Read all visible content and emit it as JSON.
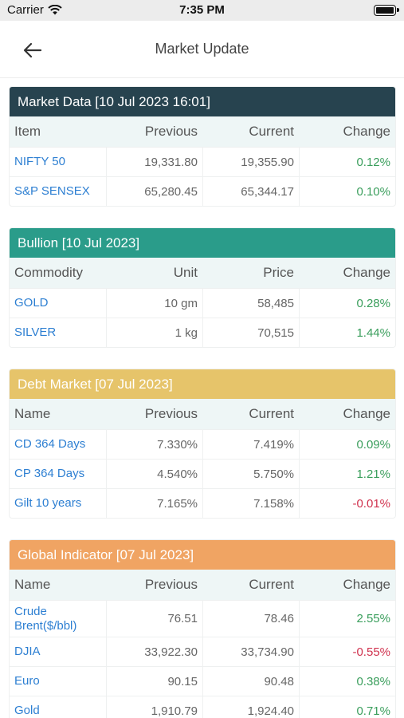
{
  "status_bar": {
    "carrier": "Carrier",
    "time": "7:35 PM"
  },
  "nav": {
    "title": "Market Update"
  },
  "colors": {
    "market_data": "#27434f",
    "bullion": "#2a9c8a",
    "debt_market": "#e6c46a",
    "global_indicator": "#f0a463",
    "positive": "#3a9e5c",
    "negative": "#d0314d",
    "link": "#2d7fd2"
  },
  "market_data": {
    "title": "Market Data [10 Jul 2023 16:01]",
    "headers": [
      "Item",
      "Previous",
      "Current",
      "Change"
    ],
    "rows": [
      {
        "item": "NIFTY 50",
        "previous": "19,331.80",
        "current": "19,355.90",
        "change": "0.12%"
      },
      {
        "item": "S&P SENSEX",
        "previous": "65,280.45",
        "current": "65,344.17",
        "change": "0.10%"
      }
    ]
  },
  "bullion": {
    "title": "Bullion [10 Jul 2023]",
    "headers": [
      "Commodity",
      "Unit",
      "Price",
      "Change"
    ],
    "rows": [
      {
        "item": "GOLD",
        "unit": "10 gm",
        "price": "58,485",
        "change": "0.28%"
      },
      {
        "item": "SILVER",
        "unit": "1 kg",
        "price": "70,515",
        "change": "1.44%"
      }
    ]
  },
  "debt_market": {
    "title": "Debt Market [07 Jul 2023]",
    "headers": [
      "Name",
      "Previous",
      "Current",
      "Change"
    ],
    "rows": [
      {
        "item": "CD 364 Days",
        "previous": "7.330%",
        "current": "7.419%",
        "change": "0.09%"
      },
      {
        "item": "CP 364 Days",
        "previous": "4.540%",
        "current": "5.750%",
        "change": "1.21%"
      },
      {
        "item": "Gilt 10 years",
        "previous": "7.165%",
        "current": "7.158%",
        "change": "-0.01%"
      }
    ]
  },
  "global_indicator": {
    "title": "Global Indicator [07 Jul 2023]",
    "headers": [
      "Name",
      "Previous",
      "Current",
      "Change"
    ],
    "rows": [
      {
        "item": "Crude Brent($/bbl)",
        "previous": "76.51",
        "current": "78.46",
        "change": "2.55%"
      },
      {
        "item": "DJIA",
        "previous": "33,922.30",
        "current": "33,734.90",
        "change": "-0.55%"
      },
      {
        "item": "Euro",
        "previous": "90.15",
        "current": "90.48",
        "change": "0.38%"
      },
      {
        "item": "Gold",
        "previous": "1,910.79",
        "current": "1,924.40",
        "change": "0.71%"
      }
    ]
  }
}
